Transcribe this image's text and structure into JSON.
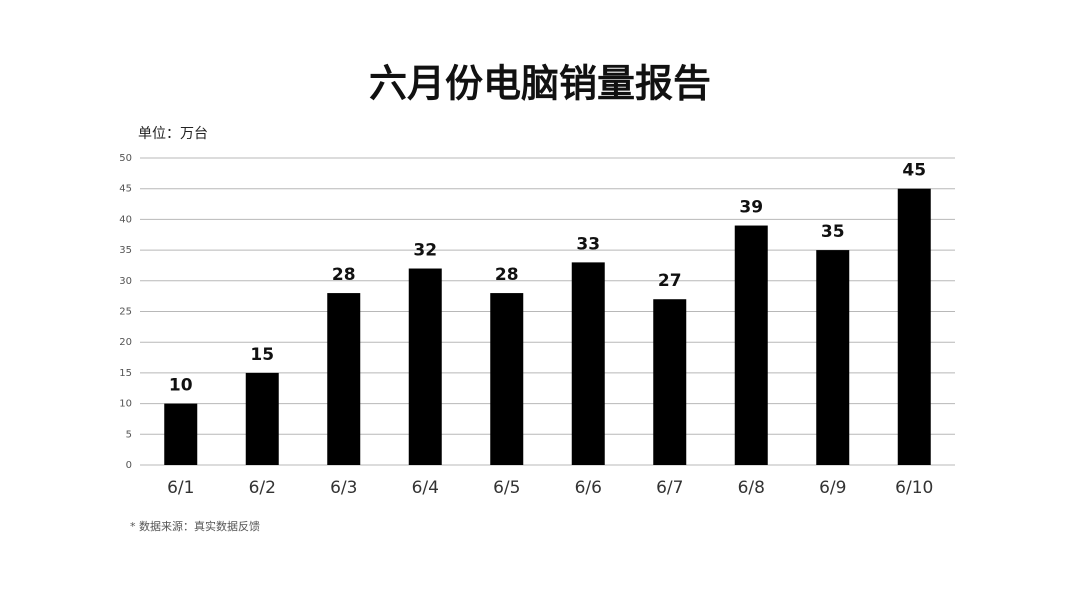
{
  "chart_data": {
    "type": "bar",
    "title": "六月份电脑销量报告",
    "unit_label": "单位：万台",
    "footnote": "* 数据来源：真实数据反馈",
    "categories": [
      "6/1",
      "6/2",
      "6/3",
      "6/4",
      "6/5",
      "6/6",
      "6/7",
      "6/8",
      "6/9",
      "6/10"
    ],
    "values": [
      10,
      15,
      28,
      32,
      28,
      33,
      27,
      39,
      35,
      45
    ],
    "color": "#000000",
    "ylim": [
      0,
      50
    ],
    "yticks": [
      0,
      5,
      10,
      15,
      20,
      25,
      30,
      35,
      40,
      45,
      50
    ],
    "grid": true,
    "data_labels": true
  }
}
